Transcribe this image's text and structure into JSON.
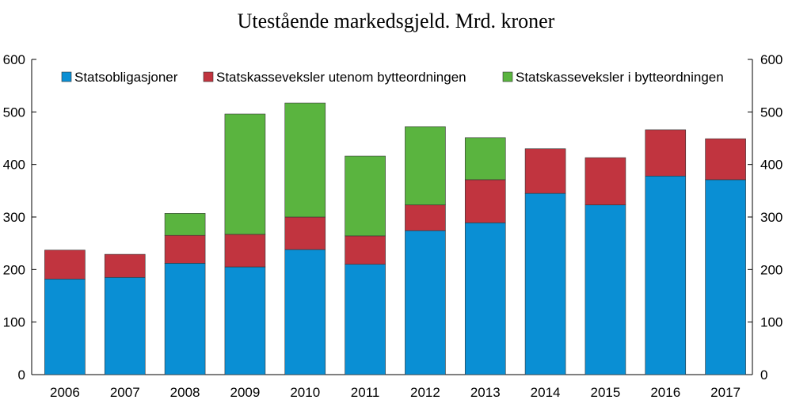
{
  "chart_data": {
    "type": "bar",
    "stacked": true,
    "title": "Utestående markedsgjeld. Mrd. kroner",
    "xlabel": "",
    "ylabel": "",
    "ylim": [
      0,
      600
    ],
    "yticks": [
      0,
      100,
      200,
      300,
      400,
      500,
      600
    ],
    "secondary_yticks": [
      0,
      100,
      200,
      300,
      400,
      500,
      600
    ],
    "grid": false,
    "legend_position": "top",
    "categories": [
      "2006",
      "2007",
      "2008",
      "2009",
      "2010",
      "2011",
      "2012",
      "2013",
      "2014",
      "2015",
      "2016",
      "2017"
    ],
    "series": [
      {
        "name": "Statsobligasjoner",
        "color": "#0a8fd4",
        "values": [
          182,
          185,
          212,
          205,
          238,
          210,
          274,
          289,
          345,
          323,
          378,
          371
        ]
      },
      {
        "name": "Statskasseveksler utenom bytteordningen",
        "color": "#c1343f",
        "values": [
          55,
          44,
          53,
          62,
          62,
          54,
          49,
          82,
          85,
          90,
          88,
          78
        ]
      },
      {
        "name": "Statskasseveksler i bytteordningen",
        "color": "#5ab43f",
        "values": [
          0,
          0,
          42,
          229,
          217,
          152,
          149,
          80,
          0,
          0,
          0,
          0
        ]
      }
    ]
  }
}
